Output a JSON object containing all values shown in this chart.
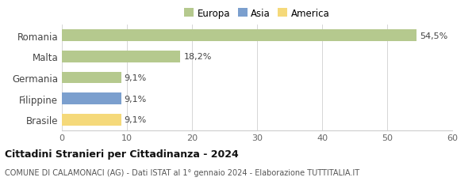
{
  "categories": [
    "Brasile",
    "Filippine",
    "Germania",
    "Malta",
    "Romania"
  ],
  "values": [
    9.1,
    9.1,
    9.1,
    18.2,
    54.5
  ],
  "labels": [
    "9,1%",
    "9,1%",
    "9,1%",
    "18,2%",
    "54,5%"
  ],
  "colors": [
    "#f5d97a",
    "#7b9fce",
    "#b5c98e",
    "#b5c98e",
    "#b5c98e"
  ],
  "legend_items": [
    {
      "label": "Europa",
      "color": "#b5c98e"
    },
    {
      "label": "Asia",
      "color": "#7b9fce"
    },
    {
      "label": "America",
      "color": "#f5d97a"
    }
  ],
  "xlim": [
    0,
    60
  ],
  "xticks": [
    0,
    10,
    20,
    30,
    40,
    50,
    60
  ],
  "title_bold": "Cittadini Stranieri per Cittadinanza - 2024",
  "subtitle": "COMUNE DI CALAMONACI (AG) - Dati ISTAT al 1° gennaio 2024 - Elaborazione TUTTITALIA.IT",
  "background_color": "#ffffff",
  "bar_height": 0.55
}
